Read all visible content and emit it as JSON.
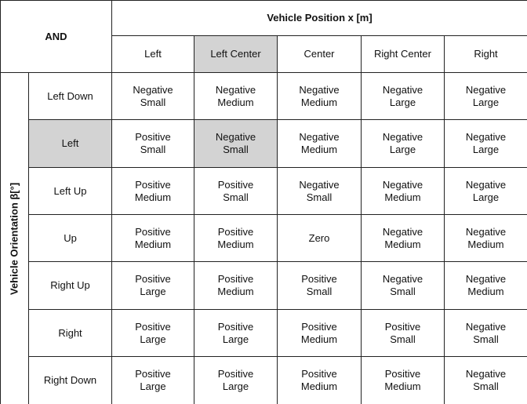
{
  "corner_label": "AND",
  "column_group_title": "Vehicle Position x [m]",
  "row_group_title": "Vehicle Orientation β[°]",
  "columns": [
    "Left",
    "Left Center",
    "Center",
    "Right Center",
    "Right"
  ],
  "rows": [
    {
      "label": "Left Down",
      "cells": [
        "Negative Small",
        "Negative Medium",
        "Negative Medium",
        "Negative Large",
        "Negative Large"
      ]
    },
    {
      "label": "Left",
      "cells": [
        "Positive Small",
        "Negative Small",
        "Negative Medium",
        "Negative Large",
        "Negative Large"
      ]
    },
    {
      "label": "Left Up",
      "cells": [
        "Positive Medium",
        "Positive Small",
        "Negative Small",
        "Negative Medium",
        "Negative Large"
      ]
    },
    {
      "label": "Up",
      "cells": [
        "Positive Medium",
        "Positive Medium",
        "Zero",
        "Negative Medium",
        "Negative Medium"
      ]
    },
    {
      "label": "Right Up",
      "cells": [
        "Positive Large",
        "Positive Medium",
        "Positive Small",
        "Negative Small",
        "Negative Medium"
      ]
    },
    {
      "label": "Right",
      "cells": [
        "Positive Large",
        "Positive Large",
        "Positive Medium",
        "Positive Small",
        "Negative Small"
      ]
    },
    {
      "label": "Right Down",
      "cells": [
        "Positive Large",
        "Positive Large",
        "Positive Medium",
        "Positive Medium",
        "Negative Small"
      ]
    }
  ],
  "highlight": {
    "column": "Left Center",
    "row": "Left",
    "color": "#d3d3d3"
  }
}
